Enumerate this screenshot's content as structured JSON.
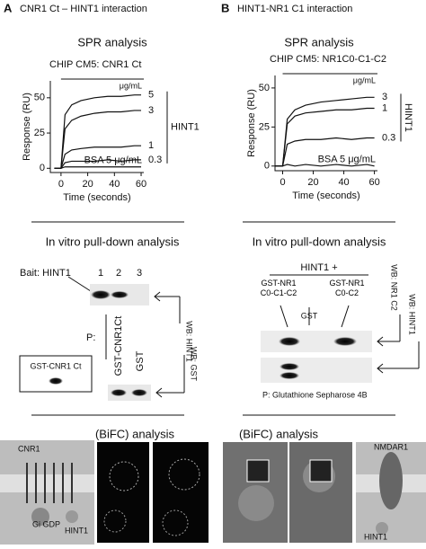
{
  "panel_a": {
    "letter": "A",
    "title": "CNR1 Ct – HINT1 interaction",
    "spr": {
      "heading": "SPR analysis",
      "chip": "CHIP CM5:  CNR1 Ct",
      "unit": "μg/mL",
      "group_label": "HINT1",
      "chart": {
        "type": "line",
        "y_label": "Response (RU)",
        "x_label": "Time (seconds)",
        "xlim": [
          -8,
          62
        ],
        "ylim": [
          -3,
          62
        ],
        "xticks": [
          0,
          20,
          40,
          60
        ],
        "yticks": [
          0,
          25,
          50
        ],
        "x": [
          -5,
          0,
          3,
          8,
          15,
          25,
          35,
          45,
          55,
          60
        ],
        "series": [
          {
            "name": "5",
            "color": "#111111",
            "values": [
              0,
              0,
              38,
              45,
              48,
              50,
              51,
              51,
              52,
              52
            ]
          },
          {
            "name": "3",
            "color": "#111111",
            "values": [
              0,
              0,
              28,
              34,
              37,
              39,
              40,
              40,
              41,
              41
            ]
          },
          {
            "name": "1",
            "color": "#111111",
            "values": [
              0,
              0,
              10,
              13,
              14,
              15,
              15,
              15,
              16,
              16
            ]
          },
          {
            "name": "0.3",
            "color": "#111111",
            "values": [
              0,
              0,
              4,
              5,
              5,
              5,
              6,
              5,
              6,
              6
            ]
          },
          {
            "name": "BSA 5 μg/mL",
            "color": "#111111",
            "values": [
              0,
              0,
              1,
              1,
              1,
              1,
              1,
              1,
              1,
              1
            ]
          }
        ]
      }
    },
    "pulldown": {
      "heading": "In vitro pull-down analysis",
      "bait": "Bait: HINT1",
      "lanes": [
        "1",
        "2",
        "3"
      ],
      "p_label": "P:",
      "lane_labels": [
        "GST-CNR1Ct",
        "GST"
      ],
      "wb_top": "WB: HINT1",
      "wb_bottom": "WB: GST",
      "input_box": "GST-CNR1 Ct"
    },
    "bifc": {
      "heading": "(BiFC) analysis",
      "receptor": "CNR1",
      "g_protein": "Gi GDP",
      "partner": "HINT1"
    }
  },
  "panel_b": {
    "letter": "B",
    "title": "HINT1-NR1 C1 interaction",
    "spr": {
      "heading": "SPR analysis",
      "chip": "CHIP CM5:   NR1C0-C1-C2",
      "unit": "μg/mL",
      "group_label": "HINT1",
      "chart": {
        "type": "line",
        "y_label": "Response (RU)",
        "x_label": "Time (seconds)",
        "xlim": [
          -5,
          62
        ],
        "ylim": [
          -3,
          58
        ],
        "xticks": [
          0,
          20,
          40,
          60
        ],
        "yticks": [
          0,
          25,
          50
        ],
        "x": [
          -5,
          0,
          3,
          8,
          15,
          25,
          35,
          45,
          55,
          60
        ],
        "series": [
          {
            "name": "3",
            "color": "#111111",
            "values": [
              0,
              0,
              30,
              36,
              39,
              41,
              42,
              43,
              44,
              44
            ]
          },
          {
            "name": "1",
            "color": "#111111",
            "values": [
              0,
              0,
              27,
              32,
              34,
              35,
              36,
              36,
              37,
              37
            ]
          },
          {
            "name": "0.3",
            "color": "#111111",
            "values": [
              0,
              0,
              14,
              16,
              17,
              17,
              18,
              17,
              18,
              18
            ]
          },
          {
            "name": "BSA 5 μg/mL",
            "color": "#111111",
            "values": [
              0,
              0,
              1,
              0,
              1,
              0,
              1,
              0,
              1,
              0
            ]
          }
        ]
      }
    },
    "pulldown": {
      "heading": "In vitro pull-down analysis",
      "group": "HINT1 +",
      "lane_labels": [
        "GST-NR1 C0-C1-C2",
        "GST",
        "GST-NR1 C0-C2"
      ],
      "wb_top": "WB: NR1 C2",
      "wb_bottom": "WB: HINT1",
      "p_label": "P: Glutathione Sepharose 4B"
    },
    "bifc": {
      "heading": "(BiFC) analysis",
      "receptor": "NMDAR1",
      "partner": "HINT1"
    }
  }
}
